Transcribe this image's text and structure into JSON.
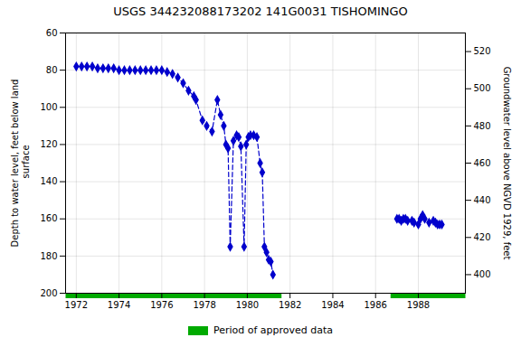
{
  "chart_data": {
    "type": "line",
    "title": "USGS 344232088173202 141G0031  TISHOMINGO",
    "ylabel": "Depth to water level, feet below land\n surface",
    "y2label": "Groundwater level above NGVD 1929, feet",
    "x": [
      1972.0,
      1972.25,
      1972.5,
      1972.75,
      1973.0,
      1973.25,
      1973.5,
      1973.75,
      1974.0,
      1974.25,
      1974.5,
      1974.75,
      1975.0,
      1975.25,
      1975.5,
      1975.75,
      1976.0,
      1976.25,
      1976.5,
      1976.75,
      1977.0,
      1977.25,
      1977.5,
      1977.6,
      1977.9,
      1978.1,
      1978.35,
      1978.6,
      1978.75,
      1978.9,
      1979.0,
      1979.1,
      1979.2,
      1979.35,
      1979.5,
      1979.6,
      1979.7,
      1979.85,
      1979.95,
      1980.05,
      1980.15,
      1980.3,
      1980.45,
      1980.6,
      1980.7,
      1980.8,
      1980.9,
      1981.0,
      1981.1,
      1981.2,
      null,
      1987.0,
      1987.1,
      1987.2,
      1987.3,
      1987.4,
      1987.5,
      1987.7,
      1987.8,
      1988.0,
      1988.1,
      1988.2,
      1988.3,
      1988.5,
      1988.7,
      1988.8,
      1988.9,
      1989.0,
      1989.1
    ],
    "series": [
      {
        "color": "#0000CC",
        "marker": "diamond",
        "line_style": "dashed",
        "values": [
          78,
          78,
          78,
          78,
          79,
          79,
          79,
          79,
          80,
          80,
          80,
          80,
          80,
          80,
          80,
          80,
          80,
          81,
          82,
          84,
          87,
          91,
          94,
          96,
          107,
          110,
          113,
          96,
          104,
          110,
          120,
          122,
          175,
          118,
          115,
          116,
          121,
          175,
          120,
          116,
          115,
          115,
          116,
          130,
          135,
          175,
          178,
          182,
          183,
          190,
          null,
          160,
          160,
          161,
          160,
          160,
          161,
          161,
          162,
          163,
          160,
          158,
          160,
          162,
          161,
          162,
          163,
          163,
          163
        ]
      }
    ],
    "xlim": [
      1971.5,
      1990.2
    ],
    "xticks": [
      1972,
      1974,
      1976,
      1978,
      1980,
      1982,
      1984,
      1986,
      1988
    ],
    "ylim": [
      200,
      60
    ],
    "yticks": [
      60,
      80,
      100,
      120,
      140,
      160,
      180,
      200
    ],
    "y2lim": [
      390,
      530
    ],
    "y2ticks": [
      400,
      420,
      440,
      460,
      480,
      500,
      520
    ],
    "grid": true,
    "approved_periods": {
      "label": "Period of approved data",
      "color": "#00aa00",
      "ranges": [
        [
          1971.5,
          1981.6
        ],
        [
          1986.7,
          1990.2
        ]
      ]
    },
    "legend": "bottom"
  }
}
